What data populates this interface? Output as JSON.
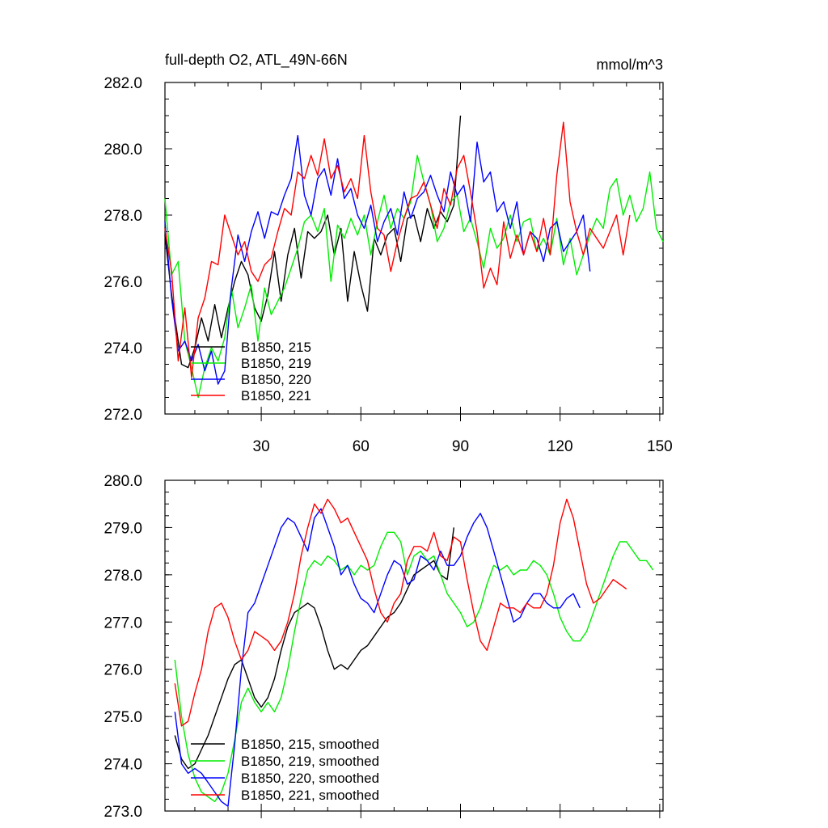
{
  "figure": {
    "title": "full-depth O2, ATL_49N-66N",
    "units": "mmol/m^3"
  },
  "chart_data": [
    {
      "type": "line",
      "title": "full-depth O2, ATL_49N-66N",
      "units_label": "mmol/m^3",
      "xlabel": "",
      "ylabel": "",
      "xlim": [
        1,
        151
      ],
      "ylim": [
        272.0,
        282.0
      ],
      "xticks": [
        30,
        60,
        90,
        120,
        150
      ],
      "yticks": [
        "272.0",
        "274.0",
        "276.0",
        "278.0",
        "280.0",
        "282.0"
      ],
      "legend_position": "bottom-left",
      "series": [
        {
          "name": "B1850, 215",
          "color": "#000000",
          "x": [
            1,
            3,
            6,
            8,
            10,
            12,
            14,
            16,
            18,
            20,
            22,
            24,
            26,
            28,
            30,
            32,
            34,
            36,
            38,
            40,
            42,
            44,
            46,
            48,
            50,
            52,
            54,
            56,
            58,
            60,
            62,
            64,
            66,
            68,
            70,
            72,
            74,
            76,
            78,
            80,
            82,
            84,
            86,
            88,
            90
          ],
          "y": [
            277.4,
            275.6,
            273.5,
            273.4,
            274.0,
            274.9,
            274.2,
            275.3,
            274.3,
            275.2,
            276.0,
            276.6,
            276.2,
            275.2,
            274.8,
            275.6,
            276.9,
            275.4,
            276.8,
            277.6,
            276.1,
            277.5,
            277.3,
            277.5,
            278.0,
            276.8,
            277.6,
            275.4,
            276.9,
            275.9,
            275.1,
            277.3,
            276.8,
            277.4,
            277.6,
            276.6,
            277.9,
            278.0,
            277.2,
            278.2,
            277.6,
            278.1,
            277.8,
            278.3,
            281.0
          ]
        },
        {
          "name": "B1850, 219",
          "color": "#00ee00",
          "x": [
            1,
            3,
            5,
            7,
            9,
            11,
            13,
            15,
            17,
            19,
            21,
            23,
            25,
            27,
            29,
            31,
            33,
            35,
            37,
            39,
            41,
            43,
            45,
            47,
            49,
            51,
            53,
            55,
            57,
            59,
            61,
            63,
            65,
            67,
            69,
            71,
            73,
            75,
            77,
            79,
            81,
            83,
            85,
            87,
            89,
            91,
            93,
            95,
            97,
            99,
            101,
            103,
            105,
            107,
            109,
            111,
            113,
            115,
            117,
            119,
            121,
            123,
            125,
            127,
            129,
            131,
            133,
            135,
            137,
            139,
            141,
            143,
            145,
            147,
            149,
            151
          ],
          "y": [
            278.5,
            276.2,
            276.6,
            274.2,
            273.4,
            272.5,
            273.4,
            274.0,
            273.6,
            274.3,
            275.8,
            274.6,
            275.2,
            275.9,
            274.2,
            275.8,
            275.0,
            275.4,
            275.8,
            276.4,
            277.0,
            277.8,
            278.0,
            277.5,
            278.2,
            276.0,
            277.7,
            277.3,
            277.9,
            277.4,
            278.0,
            276.8,
            277.8,
            278.6,
            277.6,
            278.2,
            277.9,
            278.4,
            279.8,
            279.0,
            278.3,
            277.2,
            277.6,
            278.4,
            278.6,
            277.5,
            277.9,
            277.2,
            276.4,
            277.6,
            277.0,
            277.3,
            278.0,
            277.2,
            277.8,
            277.9,
            276.9,
            277.3,
            276.8,
            277.9,
            276.5,
            277.3,
            276.2,
            276.8,
            277.4,
            277.9,
            277.6,
            278.8,
            279.1,
            278.0,
            278.6,
            277.8,
            278.2,
            279.3,
            277.6,
            277.2
          ]
        },
        {
          "name": "B1850, 220",
          "color": "#0000ff",
          "x": [
            1,
            3,
            5,
            7,
            9,
            11,
            13,
            15,
            17,
            19,
            21,
            23,
            25,
            27,
            29,
            31,
            33,
            35,
            37,
            39,
            41,
            43,
            45,
            47,
            49,
            51,
            53,
            55,
            57,
            59,
            61,
            63,
            65,
            67,
            69,
            71,
            73,
            75,
            77,
            79,
            81,
            83,
            85,
            87,
            89,
            91,
            93,
            95,
            97,
            99,
            101,
            103,
            105,
            107,
            109,
            111,
            113,
            115,
            117,
            119,
            121,
            123,
            125,
            127,
            129
          ],
          "y": [
            277.8,
            275.5,
            273.9,
            274.2,
            273.6,
            274.1,
            273.3,
            273.9,
            272.9,
            273.3,
            275.8,
            277.4,
            276.6,
            277.5,
            278.1,
            277.3,
            278.1,
            278.0,
            278.6,
            279.1,
            280.4,
            278.6,
            278.0,
            279.1,
            279.4,
            278.6,
            279.7,
            278.5,
            278.8,
            278.0,
            277.6,
            278.3,
            277.2,
            277.8,
            278.2,
            277.4,
            278.7,
            277.9,
            278.5,
            278.7,
            279.2,
            278.6,
            278.1,
            279.3,
            278.6,
            278.9,
            277.8,
            280.2,
            279.0,
            279.3,
            278.1,
            278.4,
            277.6,
            278.4,
            276.8,
            277.5,
            277.3,
            276.6,
            277.6,
            277.8,
            276.9,
            277.2,
            277.5,
            278.0,
            276.3
          ]
        },
        {
          "name": "B1850, 221",
          "color": "#ff0000",
          "x": [
            1,
            3,
            5,
            7,
            9,
            11,
            13,
            15,
            17,
            19,
            21,
            23,
            25,
            27,
            29,
            31,
            33,
            35,
            37,
            39,
            41,
            43,
            45,
            47,
            49,
            51,
            53,
            55,
            57,
            59,
            61,
            63,
            65,
            67,
            69,
            71,
            73,
            75,
            77,
            79,
            81,
            83,
            85,
            87,
            89,
            91,
            93,
            95,
            97,
            99,
            101,
            103,
            105,
            107,
            109,
            111,
            113,
            115,
            117,
            119,
            121,
            123,
            125,
            127,
            129,
            131,
            133,
            135,
            137,
            139,
            141
          ],
          "y": [
            277.6,
            276.3,
            273.6,
            275.2,
            273.1,
            274.9,
            275.5,
            276.6,
            276.5,
            278.0,
            277.4,
            276.8,
            277.2,
            276.3,
            276.0,
            276.5,
            276.7,
            277.5,
            278.2,
            278.0,
            279.3,
            279.1,
            279.8,
            279.2,
            280.3,
            279.1,
            279.5,
            278.7,
            279.1,
            278.5,
            280.4,
            278.7,
            277.6,
            277.4,
            276.3,
            277.2,
            277.9,
            278.5,
            278.6,
            279.0,
            278.3,
            277.6,
            278.8,
            278.3,
            279.4,
            279.8,
            278.7,
            277.5,
            275.8,
            276.4,
            275.9,
            277.8,
            276.7,
            277.4,
            276.8,
            277.5,
            276.9,
            277.9,
            276.8,
            279.2,
            280.8,
            278.4,
            277.5,
            276.8,
            277.6,
            277.3,
            277.0,
            277.5,
            278.0,
            276.8,
            278.0
          ]
        }
      ]
    },
    {
      "type": "line",
      "title": "",
      "xlabel": "",
      "ylabel": "",
      "xlim": [
        1,
        151
      ],
      "ylim": [
        273.0,
        280.0
      ],
      "yticks": [
        "273.0",
        "274.0",
        "275.0",
        "276.0",
        "277.0",
        "278.0",
        "279.0",
        "280.0"
      ],
      "legend_position": "bottom-left",
      "series": [
        {
          "name": "B1850, 215, smoothed",
          "color": "#000000",
          "x": [
            4,
            6,
            8,
            10,
            12,
            14,
            16,
            18,
            20,
            22,
            24,
            26,
            28,
            30,
            32,
            34,
            36,
            38,
            40,
            42,
            44,
            46,
            48,
            50,
            52,
            54,
            56,
            58,
            60,
            62,
            64,
            66,
            68,
            70,
            72,
            74,
            76,
            78,
            80,
            82,
            84,
            86,
            88
          ],
          "y": [
            274.6,
            274.1,
            273.9,
            274.0,
            274.3,
            274.6,
            275.0,
            275.4,
            275.8,
            276.1,
            276.2,
            275.8,
            275.4,
            275.2,
            275.4,
            275.8,
            276.4,
            276.9,
            277.2,
            277.3,
            277.4,
            277.3,
            276.9,
            276.4,
            276.0,
            276.1,
            276.0,
            276.2,
            276.4,
            276.5,
            276.7,
            276.9,
            277.1,
            277.2,
            277.4,
            277.7,
            278.0,
            278.1,
            278.2,
            278.3,
            278.0,
            277.9,
            279.0
          ]
        },
        {
          "name": "B1850, 219, smoothed",
          "color": "#00ee00",
          "x": [
            4,
            6,
            8,
            10,
            12,
            14,
            16,
            18,
            20,
            22,
            24,
            26,
            28,
            30,
            32,
            34,
            36,
            38,
            40,
            42,
            44,
            46,
            48,
            50,
            52,
            54,
            56,
            58,
            60,
            62,
            64,
            66,
            68,
            70,
            72,
            74,
            76,
            78,
            80,
            82,
            84,
            86,
            88,
            90,
            92,
            94,
            96,
            98,
            100,
            102,
            104,
            106,
            108,
            110,
            112,
            114,
            116,
            118,
            120,
            122,
            124,
            126,
            128,
            130,
            132,
            134,
            136,
            138,
            140,
            142,
            144,
            146,
            148
          ],
          "y": [
            276.2,
            275.0,
            274.2,
            273.7,
            273.4,
            273.3,
            273.2,
            273.4,
            273.8,
            274.5,
            275.3,
            275.6,
            275.3,
            275.1,
            275.3,
            275.1,
            275.4,
            276.0,
            276.8,
            277.5,
            278.1,
            278.3,
            278.2,
            278.4,
            278.3,
            278.1,
            278.2,
            278.0,
            278.2,
            278.1,
            278.2,
            278.6,
            278.9,
            278.9,
            278.7,
            278.0,
            278.4,
            278.5,
            278.3,
            278.4,
            278.0,
            277.6,
            277.4,
            277.2,
            276.9,
            277.0,
            277.3,
            277.8,
            278.2,
            278.1,
            278.2,
            278.0,
            278.1,
            278.1,
            278.3,
            278.2,
            278.0,
            277.6,
            277.1,
            276.8,
            276.6,
            276.6,
            276.8,
            277.2,
            277.6,
            278.0,
            278.4,
            278.7,
            278.7,
            278.5,
            278.3,
            278.3,
            278.1
          ]
        },
        {
          "name": "B1850, 220, smoothed",
          "color": "#0000ff",
          "x": [
            4,
            6,
            8,
            10,
            12,
            14,
            16,
            18,
            20,
            22,
            24,
            26,
            28,
            30,
            32,
            34,
            36,
            38,
            40,
            42,
            44,
            46,
            48,
            50,
            52,
            54,
            56,
            58,
            60,
            62,
            64,
            66,
            68,
            70,
            72,
            74,
            76,
            78,
            80,
            82,
            84,
            86,
            88,
            90,
            92,
            94,
            96,
            98,
            100,
            102,
            104,
            106,
            108,
            110,
            112,
            114,
            116,
            118,
            120,
            122,
            124,
            126
          ],
          "y": [
            275.1,
            274.0,
            273.8,
            273.9,
            273.8,
            273.6,
            273.4,
            273.2,
            273.1,
            274.4,
            276.0,
            277.2,
            277.4,
            277.8,
            278.2,
            278.6,
            279.0,
            279.2,
            279.1,
            278.8,
            278.5,
            279.2,
            279.4,
            279.0,
            278.6,
            278.0,
            278.2,
            277.8,
            277.5,
            277.4,
            277.2,
            277.6,
            278.0,
            278.3,
            278.2,
            277.8,
            277.9,
            278.4,
            278.3,
            278.1,
            278.5,
            278.2,
            278.2,
            278.4,
            278.8,
            279.1,
            279.3,
            279.0,
            278.5,
            278.0,
            277.5,
            277.0,
            277.1,
            277.4,
            277.6,
            277.6,
            277.4,
            277.3,
            277.3,
            277.5,
            277.6,
            277.3
          ]
        },
        {
          "name": "B1850, 221, smoothed",
          "color": "#ff0000",
          "x": [
            4,
            6,
            8,
            10,
            12,
            14,
            16,
            18,
            20,
            22,
            24,
            26,
            28,
            30,
            32,
            34,
            36,
            38,
            40,
            42,
            44,
            46,
            48,
            50,
            52,
            54,
            56,
            58,
            60,
            62,
            64,
            66,
            68,
            70,
            72,
            74,
            76,
            78,
            80,
            82,
            84,
            86,
            88,
            90,
            92,
            94,
            96,
            98,
            100,
            102,
            104,
            106,
            108,
            110,
            112,
            114,
            116,
            118,
            120,
            122,
            124,
            126,
            128,
            130,
            132,
            134,
            136,
            138,
            140
          ],
          "y": [
            275.7,
            274.8,
            274.9,
            275.5,
            276.0,
            276.8,
            277.3,
            277.4,
            277.1,
            276.6,
            276.2,
            276.4,
            276.8,
            276.7,
            276.6,
            276.4,
            276.6,
            277.0,
            277.6,
            278.4,
            279.0,
            279.5,
            279.3,
            279.6,
            279.4,
            279.1,
            279.2,
            278.9,
            278.6,
            278.3,
            277.7,
            277.2,
            277.0,
            277.4,
            277.6,
            278.3,
            278.6,
            278.6,
            278.5,
            278.9,
            278.4,
            278.3,
            278.8,
            278.7,
            277.9,
            277.2,
            276.6,
            276.4,
            276.9,
            277.4,
            277.3,
            277.3,
            277.2,
            277.4,
            277.3,
            277.3,
            277.6,
            278.2,
            279.1,
            279.6,
            279.2,
            278.5,
            277.8,
            277.4,
            277.5,
            277.7,
            277.9,
            277.8,
            277.7
          ]
        }
      ]
    }
  ]
}
